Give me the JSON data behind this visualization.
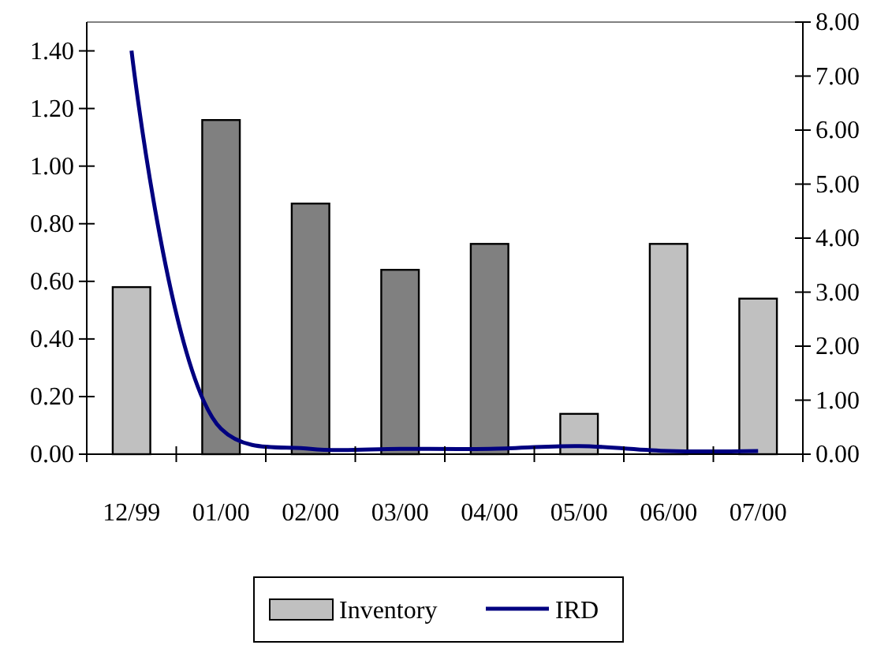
{
  "chart_data": {
    "type": "bar",
    "categories": [
      "12/99",
      "01/00",
      "02/00",
      "03/00",
      "04/00",
      "05/00",
      "06/00",
      "07/00"
    ],
    "series": [
      {
        "name": "Inventory",
        "color": "#c0c0c0",
        "colors": [
          "#c0c0c0",
          "#808080",
          "#808080",
          "#808080",
          "#808080",
          "#c0c0c0",
          "#c0c0c0",
          "#c0c0c0"
        ],
        "values": [
          0.58,
          1.16,
          0.87,
          0.64,
          0.73,
          0.14,
          0.73,
          0.54
        ]
      },
      {
        "name": "IRD",
        "type": "line",
        "axis": "y2",
        "color": "#000080",
        "values": [
          7.47,
          0.47,
          0.1,
          0.1,
          0.1,
          0.15,
          0.06,
          0.06
        ]
      }
    ],
    "ylim": [
      0,
      1.5
    ],
    "yticks": [
      {
        "value": 0,
        "label": "0.00"
      },
      {
        "value": 0.2,
        "label": "0.20"
      },
      {
        "value": 0.4,
        "label": "0.40"
      },
      {
        "value": 0.6,
        "label": "0.60"
      },
      {
        "value": 0.8,
        "label": "0.80"
      },
      {
        "value": 1,
        "label": "1.00"
      },
      {
        "value": 1.2,
        "label": "1.20"
      },
      {
        "value": 1.4,
        "label": "1.40"
      }
    ],
    "y2lim": [
      0,
      8
    ],
    "y2ticks": [
      {
        "value": 0,
        "label": "0.00"
      },
      {
        "value": 1,
        "label": "1.00"
      },
      {
        "value": 2,
        "label": "2.00"
      },
      {
        "value": 3,
        "label": "3.00"
      },
      {
        "value": 4,
        "label": "4.00"
      },
      {
        "value": 5,
        "label": "5.00"
      },
      {
        "value": 6,
        "label": "6.00"
      },
      {
        "value": 7,
        "label": "7.00"
      },
      {
        "value": 8,
        "label": "8.00"
      }
    ],
    "grid": false,
    "legend": "bottom",
    "marker": "none",
    "line_style": "solid"
  }
}
